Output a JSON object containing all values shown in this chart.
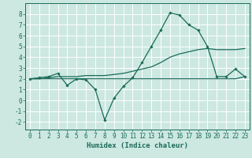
{
  "bg_color": "#cce8e0",
  "grid_color": "#ffffff",
  "line_color": "#1a6b5a",
  "xlabel": "Humidex (Indice chaleur)",
  "xlim": [
    -0.5,
    23.5
  ],
  "ylim": [
    -2.7,
    9.0
  ],
  "yticks": [
    -2,
    -1,
    0,
    1,
    2,
    3,
    4,
    5,
    6,
    7,
    8
  ],
  "xticks": [
    0,
    1,
    2,
    3,
    4,
    5,
    6,
    7,
    8,
    9,
    10,
    11,
    12,
    13,
    14,
    15,
    16,
    17,
    18,
    19,
    20,
    21,
    22,
    23
  ],
  "line1_x": [
    0,
    1,
    2,
    3,
    4,
    5,
    6,
    7,
    8,
    9,
    10,
    11,
    12,
    13,
    14,
    15,
    16,
    17,
    18,
    19,
    20,
    21,
    22,
    23
  ],
  "line1_y": [
    2.0,
    2.1,
    2.2,
    2.5,
    1.4,
    2.0,
    1.9,
    1.0,
    -1.8,
    0.2,
    1.3,
    2.1,
    3.5,
    5.0,
    6.5,
    8.1,
    7.9,
    7.0,
    6.5,
    5.0,
    2.2,
    2.2,
    2.9,
    2.2
  ],
  "line2_x": [
    0,
    1,
    2,
    3,
    4,
    5,
    6,
    7,
    8,
    9,
    10,
    11,
    12,
    13,
    14,
    15,
    16,
    17,
    18,
    19,
    20,
    21,
    22,
    23
  ],
  "line2_y": [
    2.0,
    2.0,
    2.0,
    2.0,
    2.0,
    2.0,
    2.0,
    2.0,
    2.0,
    2.0,
    2.0,
    2.0,
    2.0,
    2.0,
    2.0,
    2.0,
    2.0,
    2.0,
    2.0,
    2.0,
    2.0,
    2.0,
    2.0,
    2.2
  ],
  "line3_x": [
    0,
    1,
    2,
    3,
    4,
    5,
    6,
    7,
    8,
    9,
    10,
    11,
    12,
    13,
    14,
    15,
    16,
    17,
    18,
    19,
    20,
    21,
    22,
    23
  ],
  "line3_y": [
    2.0,
    2.0,
    2.1,
    2.2,
    2.2,
    2.2,
    2.3,
    2.3,
    2.3,
    2.4,
    2.5,
    2.7,
    2.9,
    3.1,
    3.5,
    4.0,
    4.3,
    4.5,
    4.7,
    4.8,
    4.7,
    4.7,
    4.7,
    4.8
  ],
  "tick_fontsize": 5.5,
  "xlabel_fontsize": 6.5,
  "marker_size": 1.8,
  "linewidth": 0.9
}
